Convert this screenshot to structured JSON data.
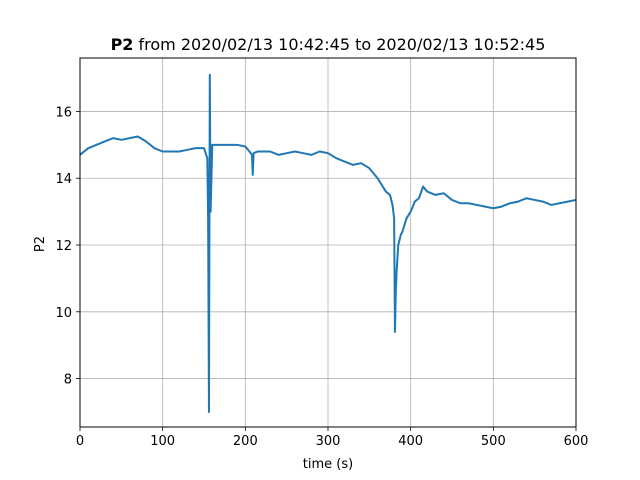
{
  "chart_data": {
    "type": "line",
    "title_bold": "P2",
    "title_rest": " from 2020/02/13 10:42:45 to 2020/02/13 10:52:45",
    "xlabel": "time (s)",
    "ylabel": "P2",
    "xlim": [
      0,
      600
    ],
    "ylim": [
      6.55,
      17.6
    ],
    "xticks": [
      0,
      100,
      200,
      300,
      400,
      500,
      600
    ],
    "xtick_labels": [
      "0",
      "100",
      "200",
      "300",
      "400",
      "500",
      "600"
    ],
    "yticks": [
      8,
      10,
      12,
      14,
      16
    ],
    "ytick_labels": [
      "8",
      "10",
      "12",
      "14",
      "16"
    ],
    "grid": true,
    "line_color": "#1f77b4",
    "series": [
      {
        "x": [
          0,
          10,
          20,
          30,
          40,
          50,
          60,
          70,
          80,
          90,
          100,
          110,
          120,
          130,
          140,
          150,
          154,
          155,
          156,
          157,
          158,
          160,
          170,
          180,
          190,
          200,
          205,
          208,
          209,
          210,
          215,
          220,
          230,
          240,
          250,
          260,
          270,
          280,
          290,
          300,
          310,
          320,
          330,
          340,
          350,
          360,
          370,
          375,
          378,
          380,
          381,
          382,
          383,
          385,
          388,
          390,
          395,
          400,
          405,
          410,
          415,
          420,
          430,
          440,
          450,
          460,
          470,
          480,
          490,
          500,
          510,
          520,
          530,
          540,
          550,
          560,
          570,
          580,
          590,
          600
        ],
        "y": [
          14.7,
          14.9,
          15.0,
          15.1,
          15.2,
          15.15,
          15.2,
          15.25,
          15.1,
          14.9,
          14.8,
          14.8,
          14.8,
          14.85,
          14.9,
          14.9,
          14.6,
          12.8,
          7.0,
          17.1,
          13.0,
          15.0,
          15.0,
          15.0,
          15.0,
          14.95,
          14.8,
          14.7,
          14.1,
          14.75,
          14.8,
          14.8,
          14.8,
          14.7,
          14.75,
          14.8,
          14.75,
          14.7,
          14.8,
          14.75,
          14.6,
          14.5,
          14.4,
          14.45,
          14.3,
          14.0,
          13.6,
          13.5,
          13.2,
          12.8,
          9.4,
          10.6,
          11.2,
          12.0,
          12.3,
          12.4,
          12.8,
          13.0,
          13.3,
          13.4,
          13.75,
          13.6,
          13.5,
          13.55,
          13.35,
          13.25,
          13.25,
          13.2,
          13.15,
          13.1,
          13.15,
          13.25,
          13.3,
          13.4,
          13.35,
          13.3,
          13.2,
          13.25,
          13.3,
          13.35
        ]
      }
    ]
  }
}
